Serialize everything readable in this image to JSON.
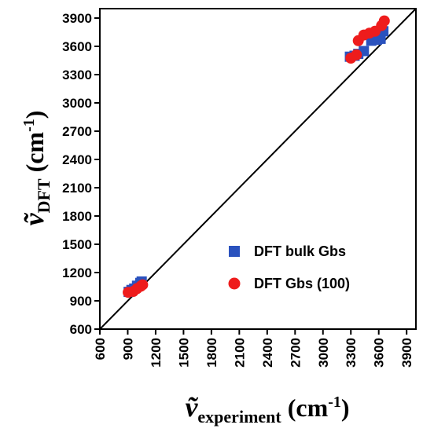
{
  "chart_data": {
    "type": "scatter",
    "title": "",
    "xlabel": {
      "symbol": "ṽ",
      "subscript": "experiment",
      "unit_open": " (cm",
      "unit_sup": "-1",
      "unit_close": ")"
    },
    "ylabel": {
      "symbol": "ṽ",
      "subscript": "DFT",
      "unit_open": " (cm",
      "unit_sup": "-1",
      "unit_close": ")"
    },
    "xlim": [
      600,
      4000
    ],
    "ylim": [
      600,
      4000
    ],
    "xticks": [
      600,
      900,
      1200,
      1500,
      1800,
      2100,
      2400,
      2700,
      3000,
      3300,
      3600,
      3900
    ],
    "yticks": [
      600,
      900,
      1200,
      1500,
      1800,
      2100,
      2400,
      2700,
      3000,
      3300,
      3600,
      3900
    ],
    "grid": false,
    "legend_position": "lower-right",
    "reference_line": {
      "type": "y=x",
      "color": "#000000"
    },
    "series": [
      {
        "name": "DFT bulk Gbs",
        "marker": "square",
        "color": "#2a52be",
        "points": [
          [
            910,
            995
          ],
          [
            940,
            1015
          ],
          [
            970,
            1030
          ],
          [
            1000,
            1060
          ],
          [
            1035,
            1090
          ],
          [
            1050,
            1105
          ],
          [
            3290,
            3490
          ],
          [
            3340,
            3500
          ],
          [
            3380,
            3520
          ],
          [
            3440,
            3550
          ],
          [
            3520,
            3660
          ],
          [
            3580,
            3670
          ],
          [
            3620,
            3680
          ],
          [
            3650,
            3760
          ]
        ]
      },
      {
        "name": "DFT Gbs (100)",
        "marker": "circle",
        "color": "#ee1c1c",
        "points": [
          [
            905,
            990
          ],
          [
            960,
            1000
          ],
          [
            1000,
            1030
          ],
          [
            1040,
            1055
          ],
          [
            1060,
            1070
          ],
          [
            3300,
            3475
          ],
          [
            3360,
            3510
          ],
          [
            3380,
            3660
          ],
          [
            3440,
            3720
          ],
          [
            3500,
            3740
          ],
          [
            3560,
            3760
          ],
          [
            3630,
            3820
          ],
          [
            3660,
            3870
          ]
        ]
      }
    ]
  }
}
